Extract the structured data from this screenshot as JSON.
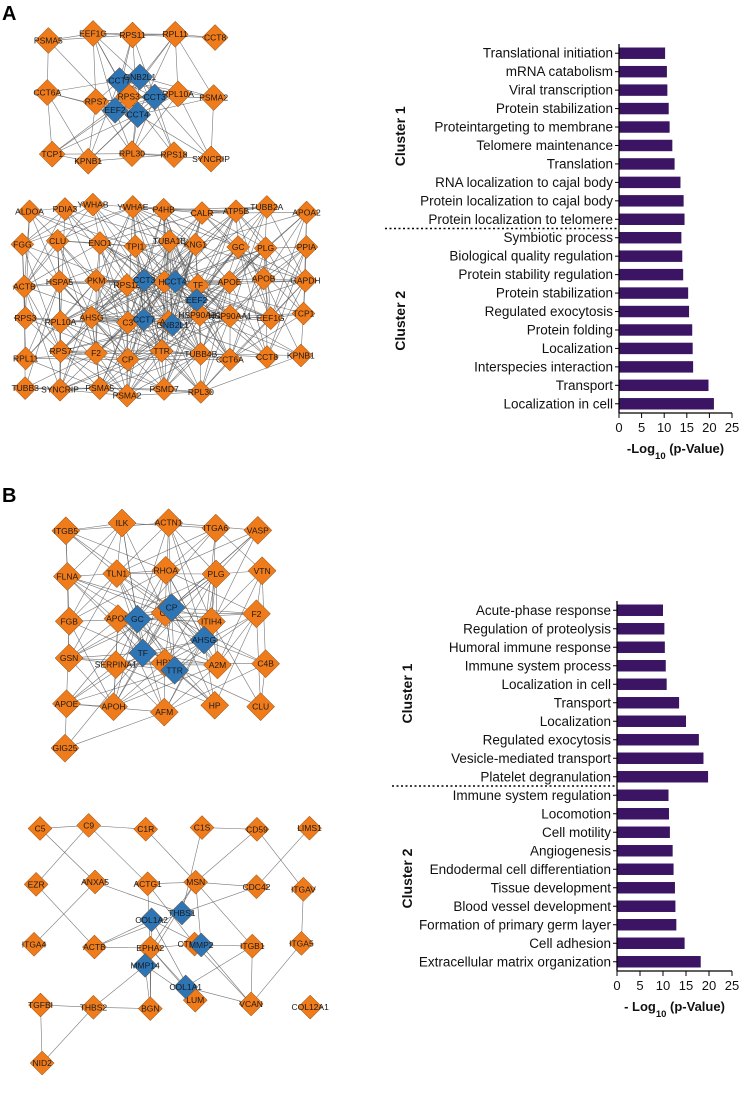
{
  "panels": [
    {
      "letter": "A",
      "networks": [
        {
          "orange_nodes": [
            "PSMA5",
            "EEF1G",
            "RPS11",
            "RPL11",
            "CCT8",
            "CCT6A",
            "RPS7",
            "RPS3",
            "RPL10A",
            "PSMA2",
            "TCP1",
            "KPNB1",
            "RPL30",
            "RPS18",
            "SYNCRIP"
          ],
          "blue_nodes": [
            "CCT3",
            "CCT4",
            "EEF2",
            "CCT7",
            "GNB2L1"
          ],
          "edges": "dense"
        },
        {
          "orange_nodes": [
            "ALDOA",
            "PDIA3",
            "YWHAB",
            "YWHAE",
            "P4HB",
            "CALR",
            "ATP5B",
            "TUBB2A",
            "APOA2",
            "FGG",
            "CLU",
            "ENO1",
            "TPI1",
            "TUBA1B",
            "KNG1",
            "GC",
            "PLG",
            "PPIA",
            "ACTB",
            "HSPA5",
            "PKM",
            "RPS18",
            "HP",
            "TF",
            "APOE",
            "APOB",
            "GAPDH",
            "RPS3",
            "RPL10A",
            "AHSG",
            "C3",
            "A2M",
            "HSP90AB1",
            "HSP90AA1",
            "EEF1G",
            "TCP1",
            "RPL11",
            "RPS7",
            "F2",
            "CP",
            "TTR",
            "TUBB4B",
            "CCT6A",
            "CCT8",
            "KPNB1",
            "TUBB3",
            "SYNCRIP",
            "PSMA5",
            "PSMA2",
            "PSMD7",
            "RPL30"
          ],
          "blue_nodes": [
            "EEF2",
            "GNB2L1",
            "CCT7",
            "CCT3",
            "CCT4"
          ],
          "edges": "dense"
        }
      ],
      "chart_data": {
        "type": "bar",
        "orientation": "horizontal",
        "categories": [
          "Translational initiation",
          "mRNA catabolism",
          "Viral transcription",
          "Protein stabilization",
          "Proteintargeting to membrane",
          "Telomere maintenance",
          "Translation",
          "RNA localization to cajal body",
          "Protein localization to cajal body",
          "Protein localization to telomere",
          "Symbiotic process",
          "Biological quality regulation",
          "Protein stability regulation",
          "Protein stabilization",
          "Regulated exocytosis",
          "Protein folding",
          "Localization",
          "Interspecies interaction",
          "Transport",
          "Localization in cell"
        ],
        "values": [
          10.2,
          10.6,
          10.7,
          11.0,
          11.2,
          11.8,
          12.3,
          13.6,
          14.3,
          14.5,
          13.8,
          14.0,
          14.2,
          15.3,
          15.5,
          16.2,
          16.3,
          16.4,
          19.8,
          21.0
        ],
        "clusters": [
          {
            "name": "Cluster 1",
            "start": 0,
            "end": 9
          },
          {
            "name": "Cluster 2",
            "start": 10,
            "end": 19
          }
        ],
        "xlabel": "-Log10 (p-Value)",
        "xlabel_main": "-Log",
        "xlabel_sub": "10",
        "xlabel_tail": " (p-Value)",
        "xlim": [
          0,
          25
        ],
        "xticks": [
          0,
          5,
          10,
          15,
          20,
          25
        ],
        "bar_color": "#3b1563"
      }
    },
    {
      "letter": "B",
      "networks": [
        {
          "orange_nodes": [
            "ITGB5",
            "ILK",
            "ACTN1",
            "ITGA6",
            "VASP",
            "FLNA",
            "TLN1",
            "RHOA",
            "PLG",
            "VTN",
            "FGB",
            "APOB",
            "C3",
            "ITIH4",
            "F2",
            "GSN",
            "SERPINA1",
            "HPX",
            "A2M",
            "C4B",
            "APOE",
            "APOH",
            "AFM",
            "HP",
            "CLU",
            "GIG25"
          ],
          "blue_nodes": [
            "AHSG",
            "TTR",
            "TF",
            "GC",
            "CP"
          ],
          "edges": "dense"
        },
        {
          "orange_nodes": [
            "C5",
            "C9",
            "C1R",
            "C1S",
            "CD59",
            "LIMS1",
            "EZR",
            "ANXA5",
            "ACTG1",
            "MSN",
            "CDC42",
            "ITGAV",
            "ITGA4",
            "ACTB",
            "EPHA2",
            "CTNNB1",
            "ITGB1",
            "ITGA5",
            "TGFBI",
            "THBS2",
            "BGN",
            "LUM",
            "VCAN",
            "COL12A1",
            "NID2"
          ],
          "blue_nodes": [
            "MMP2",
            "COL1A1",
            "MMP14",
            "COL1A2",
            "THBS1"
          ],
          "edges": "sparse"
        }
      ],
      "chart_data": {
        "type": "bar",
        "orientation": "horizontal",
        "categories": [
          "Acute-phase response",
          "Regulation of proteolysis",
          "Humoral immune response",
          "Immune system process",
          "Localization in cell",
          "Transport",
          "Localization",
          "Regulated exocytosis",
          "Vesicle-mediated transport",
          "Platelet degranulation",
          "Immune system regulation",
          "Locomotion",
          "Cell motility",
          "Angiogenesis",
          "Endodermal cell differentiation",
          "Tissue development",
          "Blood vessel development",
          "Formation of primary germ layer",
          "Cell adhesion",
          "Extracellular matrix organization"
        ],
        "values": [
          10.0,
          10.3,
          10.4,
          10.6,
          10.8,
          13.5,
          15.0,
          17.8,
          18.8,
          19.8,
          11.2,
          11.3,
          11.5,
          12.1,
          12.3,
          12.6,
          12.7,
          12.9,
          14.7,
          18.2
        ],
        "clusters": [
          {
            "name": "Cluster 1",
            "start": 0,
            "end": 9
          },
          {
            "name": "Cluster 2",
            "start": 10,
            "end": 19
          }
        ],
        "xlabel": "- Log10 (p-Value)",
        "xlabel_main": "- Log",
        "xlabel_sub": "10",
        "xlabel_tail": " (p-Value)",
        "xlim": [
          0,
          25
        ],
        "xticks": [
          0,
          5,
          10,
          15,
          20,
          25
        ],
        "bar_color": "#3b1563"
      }
    }
  ],
  "colors": {
    "node_orange": "#f07b1a",
    "node_blue": "#2e75b6",
    "edge": "#555555"
  }
}
